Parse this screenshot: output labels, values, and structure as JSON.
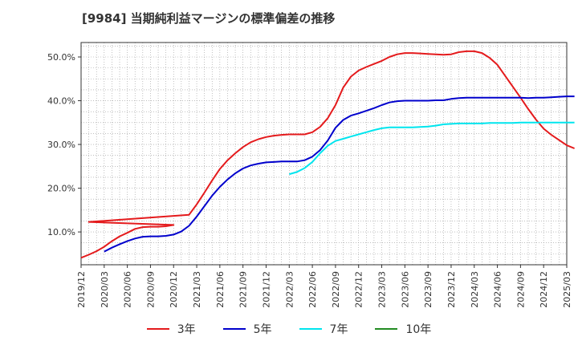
{
  "title": "[9984]  当期純利益マージンの標準偏差の推移",
  "chart_data": {
    "type": "line",
    "title": "[9984]  当期純利益マージンの標準偏差の推移",
    "xlabel": "",
    "ylabel": "",
    "x_ticks": [
      "2019/12",
      "2020/03",
      "2020/06",
      "2020/09",
      "2020/12",
      "2021/03",
      "2021/06",
      "2021/09",
      "2021/12",
      "2022/03",
      "2022/06",
      "2022/09",
      "2022/12",
      "2023/03",
      "2023/06",
      "2023/09",
      "2023/12",
      "2024/03",
      "2024/06",
      "2024/09",
      "2024/12",
      "2025/03"
    ],
    "y_ticks": [
      "10.0%",
      "20.0%",
      "30.0%",
      "40.0%",
      "50.0%"
    ],
    "y_tick_values": [
      10,
      20,
      30,
      40,
      50
    ],
    "ylim": [
      2.5,
      53.3
    ],
    "grid": true,
    "legend_position": "bottom",
    "series": [
      {
        "name": "3年",
        "color": "#e41a1c",
        "points": [
          [
            "2019/12",
            4.1
          ],
          [
            "2020/01",
            4.8
          ],
          [
            "2020/02",
            5.6
          ],
          [
            "2020/03",
            6.6
          ],
          [
            "2020/04",
            7.9
          ],
          [
            "2020/05",
            9.0
          ],
          [
            "2020/06",
            9.8
          ],
          [
            "2020/07",
            10.7
          ],
          [
            "2020/08",
            11.1
          ],
          [
            "2020/09",
            11.2
          ],
          [
            "2020/10",
            11.2
          ],
          [
            "2020/11",
            11.3
          ],
          [
            "2020/12",
            11.6
          ],
          [
            "2020/01",
            12.3
          ],
          [
            "2021/02",
            13.9
          ],
          [
            "2021/03",
            16.3
          ],
          [
            "2021/04",
            19.0
          ],
          [
            "2021/05",
            21.8
          ],
          [
            "2021/06",
            24.4
          ],
          [
            "2021/07",
            26.4
          ],
          [
            "2021/08",
            28.0
          ],
          [
            "2021/09",
            29.4
          ],
          [
            "2021/10",
            30.5
          ],
          [
            "2021/11",
            31.2
          ],
          [
            "2021/12",
            31.7
          ],
          [
            "2022/01",
            32.0
          ],
          [
            "2022/02",
            32.2
          ],
          [
            "2022/03",
            32.3
          ],
          [
            "2022/04",
            32.3
          ],
          [
            "2022/05",
            32.3
          ],
          [
            "2022/06",
            32.8
          ],
          [
            "2022/07",
            34.0
          ],
          [
            "2022/08",
            36.0
          ],
          [
            "2022/09",
            39.0
          ],
          [
            "2022/10",
            43.0
          ],
          [
            "2022/11",
            45.5
          ],
          [
            "2022/12",
            46.9
          ],
          [
            "2023/01",
            47.7
          ],
          [
            "2023/02",
            48.4
          ],
          [
            "2023/03",
            49.1
          ],
          [
            "2023/04",
            50.0
          ],
          [
            "2023/05",
            50.6
          ],
          [
            "2023/06",
            50.9
          ],
          [
            "2023/07",
            50.9
          ],
          [
            "2023/08",
            50.8
          ],
          [
            "2023/09",
            50.7
          ],
          [
            "2023/10",
            50.6
          ],
          [
            "2023/11",
            50.5
          ],
          [
            "2023/12",
            50.6
          ],
          [
            "2024/01",
            51.1
          ],
          [
            "2024/02",
            51.3
          ],
          [
            "2024/03",
            51.3
          ],
          [
            "2024/04",
            50.9
          ],
          [
            "2024/05",
            49.8
          ],
          [
            "2024/06",
            48.2
          ],
          [
            "2024/07",
            45.7
          ],
          [
            "2024/08",
            43.2
          ],
          [
            "2024/09",
            40.7
          ],
          [
            "2024/10",
            38.1
          ],
          [
            "2024/11",
            35.7
          ],
          [
            "2024/12",
            33.6
          ],
          [
            "2025/01",
            32.2
          ],
          [
            "2025/02",
            31.0
          ],
          [
            "2025/03",
            29.8
          ],
          [
            "2025/04",
            29.1
          ]
        ]
      },
      {
        "name": "5年",
        "color": "#0000cc",
        "points": [
          [
            "2020/03",
            5.5
          ],
          [
            "2020/04",
            6.4
          ],
          [
            "2020/05",
            7.2
          ],
          [
            "2020/06",
            7.9
          ],
          [
            "2020/07",
            8.5
          ],
          [
            "2020/08",
            8.9
          ],
          [
            "2020/09",
            9.0
          ],
          [
            "2020/10",
            9.0
          ],
          [
            "2020/11",
            9.1
          ],
          [
            "2020/12",
            9.4
          ],
          [
            "2021/01",
            10.1
          ],
          [
            "2021/02",
            11.4
          ],
          [
            "2021/03",
            13.5
          ],
          [
            "2021/04",
            15.9
          ],
          [
            "2021/05",
            18.3
          ],
          [
            "2021/06",
            20.3
          ],
          [
            "2021/07",
            22.0
          ],
          [
            "2021/08",
            23.4
          ],
          [
            "2021/09",
            24.5
          ],
          [
            "2021/10",
            25.2
          ],
          [
            "2021/11",
            25.6
          ],
          [
            "2021/12",
            25.9
          ],
          [
            "2022/01",
            26.0
          ],
          [
            "2022/02",
            26.1
          ],
          [
            "2022/03",
            26.1
          ],
          [
            "2022/04",
            26.1
          ],
          [
            "2022/05",
            26.4
          ],
          [
            "2022/06",
            27.2
          ],
          [
            "2022/07",
            28.7
          ],
          [
            "2022/08",
            30.9
          ],
          [
            "2022/09",
            33.8
          ],
          [
            "2022/10",
            35.6
          ],
          [
            "2022/11",
            36.6
          ],
          [
            "2022/12",
            37.1
          ],
          [
            "2023/01",
            37.7
          ],
          [
            "2023/02",
            38.3
          ],
          [
            "2023/03",
            39.0
          ],
          [
            "2023/04",
            39.6
          ],
          [
            "2023/05",
            39.9
          ],
          [
            "2023/06",
            40.0
          ],
          [
            "2023/07",
            40.0
          ],
          [
            "2023/08",
            40.0
          ],
          [
            "2023/09",
            40.0
          ],
          [
            "2023/10",
            40.1
          ],
          [
            "2023/11",
            40.1
          ],
          [
            "2023/12",
            40.4
          ],
          [
            "2024/01",
            40.6
          ],
          [
            "2024/02",
            40.7
          ],
          [
            "2024/03",
            40.7
          ],
          [
            "2024/04",
            40.7
          ],
          [
            "2024/05",
            40.7
          ],
          [
            "2024/06",
            40.7
          ],
          [
            "2024/07",
            40.7
          ],
          [
            "2024/08",
            40.7
          ],
          [
            "2024/09",
            40.7
          ],
          [
            "2024/10",
            40.6
          ],
          [
            "2024/11",
            40.7
          ],
          [
            "2024/12",
            40.7
          ],
          [
            "2025/01",
            40.8
          ],
          [
            "2025/02",
            40.9
          ],
          [
            "2025/03",
            41.0
          ],
          [
            "2025/04",
            41.0
          ]
        ]
      },
      {
        "name": "7年",
        "color": "#00e5ee",
        "points": [
          [
            "2022/03",
            23.2
          ],
          [
            "2022/04",
            23.7
          ],
          [
            "2022/05",
            24.6
          ],
          [
            "2022/06",
            26.0
          ],
          [
            "2022/07",
            28.0
          ],
          [
            "2022/08",
            29.7
          ],
          [
            "2022/09",
            30.8
          ],
          [
            "2022/10",
            31.3
          ],
          [
            "2022/11",
            31.8
          ],
          [
            "2022/12",
            32.3
          ],
          [
            "2023/01",
            32.8
          ],
          [
            "2023/02",
            33.3
          ],
          [
            "2023/03",
            33.7
          ],
          [
            "2023/04",
            33.9
          ],
          [
            "2023/05",
            33.9
          ],
          [
            "2023/06",
            33.9
          ],
          [
            "2023/07",
            33.9
          ],
          [
            "2023/08",
            34.0
          ],
          [
            "2023/09",
            34.1
          ],
          [
            "2023/10",
            34.3
          ],
          [
            "2023/11",
            34.6
          ],
          [
            "2023/12",
            34.7
          ],
          [
            "2024/01",
            34.8
          ],
          [
            "2024/02",
            34.8
          ],
          [
            "2024/03",
            34.8
          ],
          [
            "2024/04",
            34.8
          ],
          [
            "2024/05",
            34.9
          ],
          [
            "2024/06",
            34.9
          ],
          [
            "2024/07",
            34.9
          ],
          [
            "2024/08",
            34.9
          ],
          [
            "2024/09",
            35.0
          ],
          [
            "2024/10",
            35.0
          ],
          [
            "2024/11",
            35.0
          ],
          [
            "2024/12",
            35.0
          ],
          [
            "2025/01",
            35.0
          ],
          [
            "2025/02",
            35.0
          ],
          [
            "2025/03",
            35.0
          ],
          [
            "2025/04",
            35.0
          ]
        ]
      },
      {
        "name": "10年",
        "color": "#228b22",
        "points": []
      }
    ]
  }
}
